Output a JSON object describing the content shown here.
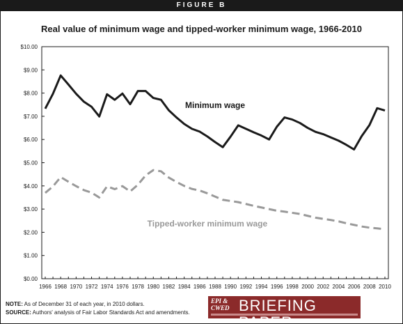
{
  "figure_label": "FIGURE B",
  "chart_data": {
    "type": "line",
    "title": "Real value of minimum wage and tipped-worker minimum wage, 1966-2010",
    "xlabel": "",
    "ylabel": "",
    "x": [
      1966,
      1967,
      1968,
      1969,
      1970,
      1971,
      1972,
      1973,
      1974,
      1975,
      1976,
      1977,
      1978,
      1979,
      1980,
      1981,
      1982,
      1983,
      1984,
      1985,
      1986,
      1987,
      1988,
      1989,
      1990,
      1991,
      1992,
      1993,
      1994,
      1995,
      1996,
      1997,
      1998,
      1999,
      2000,
      2001,
      2002,
      2003,
      2004,
      2005,
      2006,
      2007,
      2008,
      2009,
      2010
    ],
    "x_tick_labels": [
      "1966",
      "1968",
      "1970",
      "1972",
      "1974",
      "1976",
      "1978",
      "1980",
      "1982",
      "1984",
      "1986",
      "1988",
      "1990",
      "1992",
      "1994",
      "1996",
      "1998",
      "2000",
      "2002",
      "2004",
      "2006",
      "2008",
      "2010"
    ],
    "ylim": [
      0,
      10
    ],
    "y_tick_labels": [
      "$0.00",
      "$1.00",
      "$2.00",
      "$3.00",
      "$4.00",
      "$5.00",
      "$6.00",
      "$7.00",
      "$8.00",
      "$9.00",
      "$10.00"
    ],
    "grid": false,
    "series": [
      {
        "name": "Minimum wage",
        "style": "solid",
        "color": "#1a1a1a",
        "values": [
          7.33,
          7.97,
          8.76,
          8.37,
          7.97,
          7.63,
          7.41,
          6.99,
          7.95,
          7.71,
          7.98,
          7.52,
          8.09,
          8.09,
          7.79,
          7.71,
          7.26,
          6.95,
          6.67,
          6.46,
          6.34,
          6.13,
          5.89,
          5.67,
          6.12,
          6.61,
          6.46,
          6.31,
          6.17,
          6.0,
          6.55,
          6.95,
          6.86,
          6.71,
          6.5,
          6.33,
          6.23,
          6.09,
          5.95,
          5.77,
          5.57,
          6.15,
          6.62,
          7.35,
          7.25
        ]
      },
      {
        "name": "Tipped-worker minimum wage",
        "style": "dashed",
        "color": "#999999",
        "values": [
          3.7,
          3.98,
          4.38,
          4.18,
          3.99,
          3.82,
          3.71,
          3.5,
          3.98,
          3.86,
          3.99,
          3.76,
          4.05,
          4.45,
          4.68,
          4.63,
          4.36,
          4.17,
          4.0,
          3.87,
          3.8,
          3.68,
          3.54,
          3.4,
          3.35,
          3.3,
          3.22,
          3.14,
          3.07,
          3.0,
          2.93,
          2.89,
          2.84,
          2.79,
          2.71,
          2.63,
          2.58,
          2.53,
          2.47,
          2.39,
          2.32,
          2.25,
          2.2,
          2.17,
          2.13
        ]
      }
    ],
    "annotations": [
      {
        "text": "Minimum wage",
        "x": 1988,
        "y": 7.35
      },
      {
        "text": "Tipped-worker minimum wage",
        "x": 1987,
        "y": 2.25
      }
    ]
  },
  "notes": {
    "note_label": "NOTE:",
    "note_text": " As of December 31 of each year, in 2010 dollars.",
    "source_label": "SOURCE:",
    "source_text": " Authors' analysis of Fair Labor Standards Act and amendments."
  },
  "logo": {
    "line1": "EPI &",
    "line2": "CWED",
    "name": "BRIEFING PAPER",
    "brand_color": "#8b2a2a"
  }
}
